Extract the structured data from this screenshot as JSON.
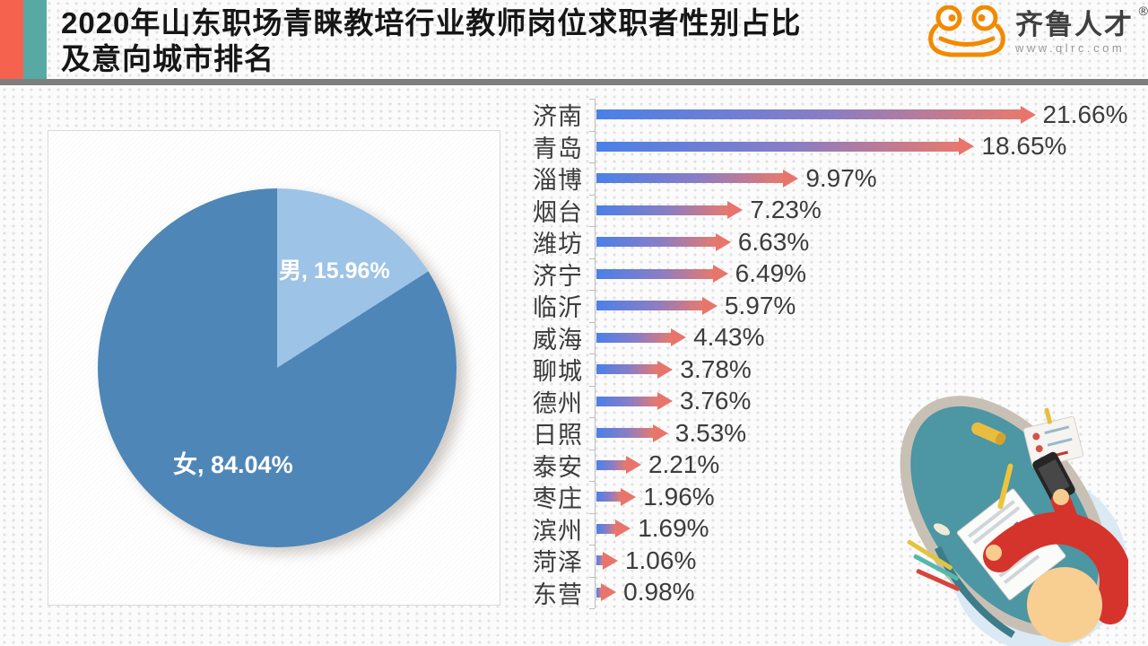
{
  "header": {
    "title_line1": "2020年山东职场青睐教培行业教师岗位求职者性别占比",
    "title_line2": "及意向城市排名",
    "accent_red": "#f5624d",
    "accent_teal": "#58a8a4",
    "logo": {
      "brand_name": "齐鲁人才",
      "website": "www.qlrc.com",
      "registered_mark": "®",
      "brand_color": "#f18a00"
    }
  },
  "chart_data": [
    {
      "type": "pie",
      "labels": [
        "男",
        "女"
      ],
      "values": [
        15.96,
        84.04
      ],
      "unit": "%",
      "colors": [
        "#9dc3e6",
        "#4e86b8"
      ],
      "start_angle_deg": 0,
      "direction": "clockwise",
      "data_label_format": "{label}, {value}%",
      "legend": "none"
    },
    {
      "type": "bar",
      "orientation": "horizontal",
      "categories": [
        "济南",
        "青岛",
        "淄博",
        "烟台",
        "潍坊",
        "济宁",
        "临沂",
        "威海",
        "聊城",
        "德州",
        "日照",
        "泰安",
        "枣庄",
        "滨州",
        "菏泽",
        "东营"
      ],
      "values": [
        21.66,
        18.65,
        9.97,
        7.23,
        6.63,
        6.49,
        5.97,
        4.43,
        3.78,
        3.76,
        3.53,
        2.21,
        1.96,
        1.69,
        1.06,
        0.98
      ],
      "unit": "%",
      "xlim": [
        0,
        22
      ],
      "grid": false,
      "value_label_suffix": "%",
      "bar_style": "gradient-arrow",
      "bar_gradient": [
        "#4a80e8",
        "#8b7dc4",
        "#e6796f"
      ],
      "arrow_color": "#e8756c"
    }
  ]
}
